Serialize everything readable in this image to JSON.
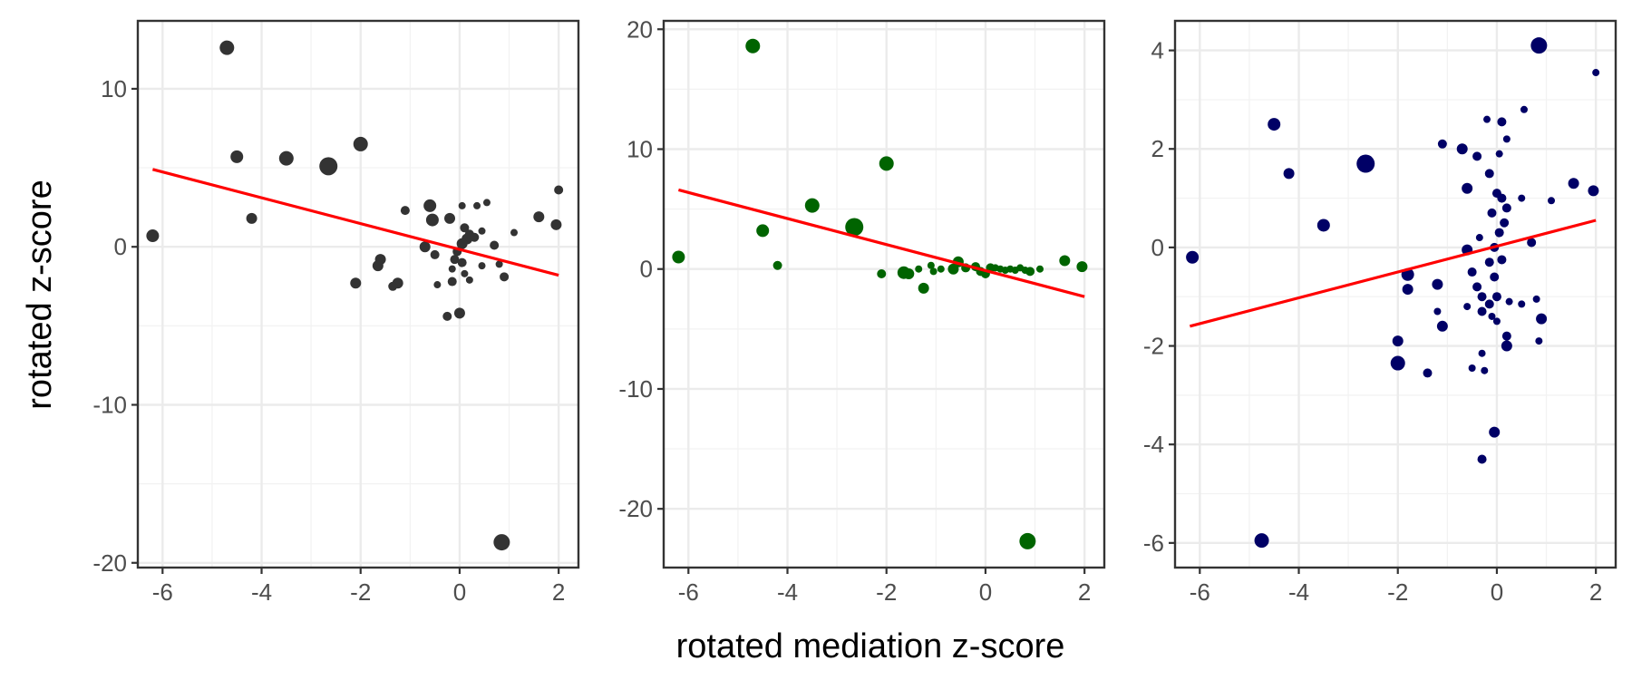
{
  "figure": {
    "ylabel": "rotated z-score",
    "xlabel": "rotated mediation z-score"
  },
  "chart_data": [
    {
      "type": "scatter",
      "title": "",
      "xlim": [
        -6.5,
        2.4
      ],
      "ylim": [
        -20.3,
        14.3
      ],
      "x_ticks": [
        -6,
        -4,
        -2,
        0,
        2
      ],
      "y_ticks": [
        -20,
        -10,
        0,
        10
      ],
      "grid": true,
      "color": "#333333",
      "fit_line": {
        "x": [
          -6.2,
          2.0
        ],
        "y": [
          4.9,
          -1.8
        ],
        "color": "#ff0000"
      },
      "points": [
        {
          "x": -4.7,
          "y": 12.6,
          "size": 8
        },
        {
          "x": -6.2,
          "y": 0.7,
          "size": 7
        },
        {
          "x": -4.5,
          "y": 5.7,
          "size": 7
        },
        {
          "x": -4.2,
          "y": 1.8,
          "size": 6
        },
        {
          "x": -3.5,
          "y": 5.6,
          "size": 8
        },
        {
          "x": -2.65,
          "y": 5.1,
          "size": 10
        },
        {
          "x": -2.0,
          "y": 6.5,
          "size": 8
        },
        {
          "x": -2.1,
          "y": -2.3,
          "size": 6
        },
        {
          "x": -1.1,
          "y": 2.3,
          "size": 5
        },
        {
          "x": -1.6,
          "y": -0.8,
          "size": 6
        },
        {
          "x": -1.65,
          "y": -1.2,
          "size": 6
        },
        {
          "x": -1.25,
          "y": -2.3,
          "size": 6
        },
        {
          "x": -1.35,
          "y": -2.5,
          "size": 5
        },
        {
          "x": -0.6,
          "y": 2.6,
          "size": 7
        },
        {
          "x": -0.55,
          "y": 1.7,
          "size": 7
        },
        {
          "x": -0.2,
          "y": 1.8,
          "size": 6
        },
        {
          "x": -0.7,
          "y": 0.0,
          "size": 6
        },
        {
          "x": -0.5,
          "y": -0.5,
          "size": 5
        },
        {
          "x": -0.45,
          "y": -2.4,
          "size": 4
        },
        {
          "x": -0.25,
          "y": -4.4,
          "size": 5
        },
        {
          "x": 0.0,
          "y": -4.2,
          "size": 6
        },
        {
          "x": -0.15,
          "y": -2.2,
          "size": 5
        },
        {
          "x": 0.05,
          "y": 2.6,
          "size": 4
        },
        {
          "x": 0.1,
          "y": 1.2,
          "size": 5
        },
        {
          "x": 0.15,
          "y": 0.5,
          "size": 6
        },
        {
          "x": 0.2,
          "y": 0.8,
          "size": 5
        },
        {
          "x": 0.3,
          "y": 0.6,
          "size": 5
        },
        {
          "x": 0.05,
          "y": 0.2,
          "size": 6
        },
        {
          "x": -0.05,
          "y": -0.3,
          "size": 5
        },
        {
          "x": -0.1,
          "y": -0.8,
          "size": 5
        },
        {
          "x": 0.05,
          "y": -1.0,
          "size": 5
        },
        {
          "x": -0.15,
          "y": -1.4,
          "size": 4
        },
        {
          "x": 0.1,
          "y": -1.7,
          "size": 4
        },
        {
          "x": 0.2,
          "y": -2.1,
          "size": 4
        },
        {
          "x": 0.35,
          "y": 2.6,
          "size": 4
        },
        {
          "x": 0.55,
          "y": 2.8,
          "size": 4
        },
        {
          "x": 0.45,
          "y": -1.2,
          "size": 4
        },
        {
          "x": 0.7,
          "y": 0.1,
          "size": 5
        },
        {
          "x": 0.8,
          "y": -1.1,
          "size": 4
        },
        {
          "x": 0.9,
          "y": -1.9,
          "size": 5
        },
        {
          "x": 1.1,
          "y": 0.9,
          "size": 4
        },
        {
          "x": 0.45,
          "y": 1.0,
          "size": 4
        },
        {
          "x": 1.6,
          "y": 1.9,
          "size": 6
        },
        {
          "x": 1.95,
          "y": 1.4,
          "size": 6
        },
        {
          "x": 2.0,
          "y": 3.6,
          "size": 5
        },
        {
          "x": 0.85,
          "y": -18.7,
          "size": 9
        }
      ]
    },
    {
      "type": "scatter",
      "title": "",
      "xlim": [
        -6.5,
        2.4
      ],
      "ylim": [
        -24.9,
        20.7
      ],
      "x_ticks": [
        -6,
        -4,
        -2,
        0,
        2
      ],
      "y_ticks": [
        -20,
        -10,
        0,
        10,
        20
      ],
      "grid": true,
      "color": "#006400",
      "fit_line": {
        "x": [
          -6.2,
          2.0
        ],
        "y": [
          6.6,
          -2.3
        ],
        "color": "#ff0000"
      },
      "points": [
        {
          "x": -4.7,
          "y": 18.6,
          "size": 8
        },
        {
          "x": -6.2,
          "y": 1.0,
          "size": 7
        },
        {
          "x": -4.5,
          "y": 3.2,
          "size": 7
        },
        {
          "x": -4.2,
          "y": 0.3,
          "size": 5
        },
        {
          "x": -3.5,
          "y": 5.3,
          "size": 8
        },
        {
          "x": -2.65,
          "y": 3.5,
          "size": 10
        },
        {
          "x": -2.0,
          "y": 8.8,
          "size": 8
        },
        {
          "x": -2.1,
          "y": -0.4,
          "size": 5
        },
        {
          "x": -1.65,
          "y": -0.3,
          "size": 7
        },
        {
          "x": -1.55,
          "y": -0.4,
          "size": 6
        },
        {
          "x": -1.25,
          "y": -1.6,
          "size": 6
        },
        {
          "x": -1.35,
          "y": 0.0,
          "size": 4
        },
        {
          "x": -1.1,
          "y": 0.3,
          "size": 4
        },
        {
          "x": -1.05,
          "y": -0.2,
          "size": 4
        },
        {
          "x": -0.9,
          "y": 0.0,
          "size": 4
        },
        {
          "x": -0.55,
          "y": 0.6,
          "size": 6
        },
        {
          "x": -0.65,
          "y": 0.0,
          "size": 6
        },
        {
          "x": -0.4,
          "y": 0.1,
          "size": 5
        },
        {
          "x": -0.2,
          "y": 0.2,
          "size": 5
        },
        {
          "x": -0.1,
          "y": -0.2,
          "size": 5
        },
        {
          "x": 0.0,
          "y": -0.4,
          "size": 5
        },
        {
          "x": 0.1,
          "y": 0.1,
          "size": 5
        },
        {
          "x": 0.2,
          "y": 0.1,
          "size": 4
        },
        {
          "x": 0.3,
          "y": 0.0,
          "size": 4
        },
        {
          "x": 0.4,
          "y": -0.1,
          "size": 4
        },
        {
          "x": 0.5,
          "y": 0.0,
          "size": 4
        },
        {
          "x": 0.6,
          "y": -0.1,
          "size": 4
        },
        {
          "x": 0.7,
          "y": 0.1,
          "size": 4
        },
        {
          "x": 0.8,
          "y": -0.1,
          "size": 4
        },
        {
          "x": 0.9,
          "y": -0.2,
          "size": 5
        },
        {
          "x": 1.1,
          "y": 0.0,
          "size": 4
        },
        {
          "x": 1.6,
          "y": 0.7,
          "size": 6
        },
        {
          "x": 1.95,
          "y": 0.2,
          "size": 6
        },
        {
          "x": 0.85,
          "y": -22.7,
          "size": 9
        }
      ]
    },
    {
      "type": "scatter",
      "title": "",
      "xlim": [
        -6.5,
        2.4
      ],
      "ylim": [
        -6.5,
        4.6
      ],
      "x_ticks": [
        -6,
        -4,
        -2,
        0,
        2
      ],
      "y_ticks": [
        -6,
        -4,
        -2,
        0,
        2,
        4
      ],
      "grid": true,
      "color": "#000066",
      "fit_line": {
        "x": [
          -6.2,
          2.0
        ],
        "y": [
          -1.6,
          0.55
        ],
        "color": "#ff0000"
      },
      "points": [
        {
          "x": 0.85,
          "y": 4.1,
          "size": 9
        },
        {
          "x": 2.0,
          "y": 3.55,
          "size": 4
        },
        {
          "x": 0.55,
          "y": 2.8,
          "size": 4
        },
        {
          "x": -0.2,
          "y": 2.6,
          "size": 4
        },
        {
          "x": 0.1,
          "y": 2.55,
          "size": 5
        },
        {
          "x": -4.5,
          "y": 2.5,
          "size": 7
        },
        {
          "x": 0.2,
          "y": 2.2,
          "size": 4
        },
        {
          "x": -1.1,
          "y": 2.1,
          "size": 5
        },
        {
          "x": -0.7,
          "y": 2.0,
          "size": 6
        },
        {
          "x": -0.4,
          "y": 1.85,
          "size": 5
        },
        {
          "x": 0.05,
          "y": 1.9,
          "size": 4
        },
        {
          "x": -2.65,
          "y": 1.7,
          "size": 10
        },
        {
          "x": -4.2,
          "y": 1.5,
          "size": 6
        },
        {
          "x": -0.15,
          "y": 1.5,
          "size": 5
        },
        {
          "x": 1.55,
          "y": 1.3,
          "size": 6
        },
        {
          "x": 1.95,
          "y": 1.15,
          "size": 6
        },
        {
          "x": -0.6,
          "y": 1.2,
          "size": 6
        },
        {
          "x": 0.0,
          "y": 1.1,
          "size": 5
        },
        {
          "x": 0.1,
          "y": 1.0,
          "size": 5
        },
        {
          "x": 0.5,
          "y": 1.0,
          "size": 4
        },
        {
          "x": 1.1,
          "y": 0.95,
          "size": 4
        },
        {
          "x": 0.2,
          "y": 0.8,
          "size": 5
        },
        {
          "x": -0.1,
          "y": 0.7,
          "size": 5
        },
        {
          "x": 0.15,
          "y": 0.5,
          "size": 5
        },
        {
          "x": -3.5,
          "y": 0.45,
          "size": 7
        },
        {
          "x": 0.05,
          "y": 0.3,
          "size": 5
        },
        {
          "x": -0.35,
          "y": 0.2,
          "size": 4
        },
        {
          "x": 0.7,
          "y": 0.1,
          "size": 5
        },
        {
          "x": -0.6,
          "y": -0.05,
          "size": 6
        },
        {
          "x": -0.05,
          "y": 0.0,
          "size": 5
        },
        {
          "x": -6.15,
          "y": -0.2,
          "size": 7
        },
        {
          "x": -0.15,
          "y": -0.3,
          "size": 5
        },
        {
          "x": 0.1,
          "y": -0.25,
          "size": 5
        },
        {
          "x": -0.5,
          "y": -0.5,
          "size": 5
        },
        {
          "x": -1.8,
          "y": -0.55,
          "size": 7
        },
        {
          "x": -0.05,
          "y": -0.6,
          "size": 5
        },
        {
          "x": -1.2,
          "y": -0.75,
          "size": 6
        },
        {
          "x": -0.4,
          "y": -0.8,
          "size": 5
        },
        {
          "x": -1.8,
          "y": -0.85,
          "size": 6
        },
        {
          "x": -0.3,
          "y": -1.0,
          "size": 5
        },
        {
          "x": 0.0,
          "y": -1.0,
          "size": 5
        },
        {
          "x": 0.8,
          "y": -1.05,
          "size": 4
        },
        {
          "x": 0.25,
          "y": -1.1,
          "size": 4
        },
        {
          "x": -0.15,
          "y": -1.15,
          "size": 5
        },
        {
          "x": 0.5,
          "y": -1.15,
          "size": 4
        },
        {
          "x": -0.6,
          "y": -1.2,
          "size": 4
        },
        {
          "x": -0.3,
          "y": -1.3,
          "size": 5
        },
        {
          "x": -1.2,
          "y": -1.3,
          "size": 4
        },
        {
          "x": 0.9,
          "y": -1.45,
          "size": 6
        },
        {
          "x": -0.1,
          "y": -1.4,
          "size": 4
        },
        {
          "x": -1.1,
          "y": -1.6,
          "size": 6
        },
        {
          "x": 0.0,
          "y": -1.5,
          "size": 4
        },
        {
          "x": 0.2,
          "y": -1.8,
          "size": 5
        },
        {
          "x": -2.0,
          "y": -1.9,
          "size": 6
        },
        {
          "x": 0.85,
          "y": -1.9,
          "size": 4
        },
        {
          "x": 0.2,
          "y": -2.0,
          "size": 6
        },
        {
          "x": -0.3,
          "y": -2.15,
          "size": 4
        },
        {
          "x": -2.0,
          "y": -2.35,
          "size": 8
        },
        {
          "x": -0.5,
          "y": -2.45,
          "size": 4
        },
        {
          "x": -0.25,
          "y": -2.5,
          "size": 4
        },
        {
          "x": -1.4,
          "y": -2.55,
          "size": 5
        },
        {
          "x": -0.05,
          "y": -3.75,
          "size": 6
        },
        {
          "x": -0.3,
          "y": -4.3,
          "size": 5
        },
        {
          "x": -4.75,
          "y": -5.95,
          "size": 8
        }
      ]
    }
  ]
}
